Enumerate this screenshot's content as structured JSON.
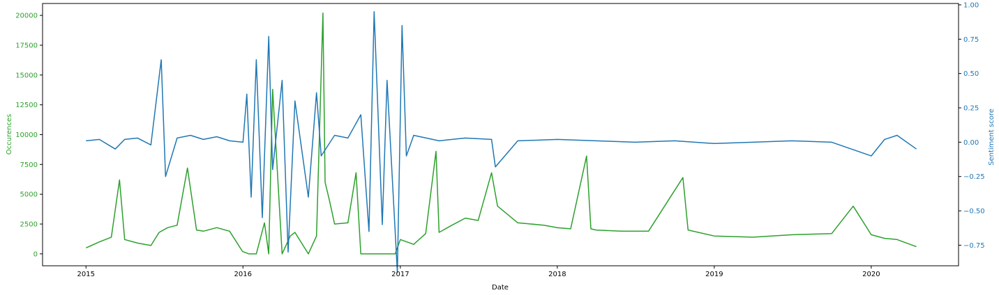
{
  "chart_data": {
    "type": "line",
    "title": "",
    "xlabel": "Date",
    "ylabel_left": "Occurences",
    "ylabel_right": "Sentiment score",
    "x_ticks": [
      "2015",
      "2016",
      "2017",
      "2018",
      "2019",
      "2020"
    ],
    "xlim": [
      "2014-09-22",
      "2020-07-22"
    ],
    "ylim_left": [
      -1000,
      21000
    ],
    "ylim_right": [
      -0.9,
      1.01
    ],
    "y_ticks_left": [
      0,
      2500,
      5000,
      7500,
      10000,
      12500,
      15000,
      17500,
      20000
    ],
    "y_ticks_right": [
      -0.75,
      -0.5,
      -0.25,
      0.0,
      0.25,
      0.5,
      0.75,
      1.0
    ],
    "y_tick_labels_right": [
      "−0.75",
      "−0.50",
      "−0.25",
      "0.00",
      "0.25",
      "0.50",
      "0.75",
      "1.00"
    ],
    "grid": false,
    "colors": {
      "occurences": "#2ca02c",
      "sentiment": "#1f77b4",
      "axis": "#000000"
    },
    "series": [
      {
        "axis": "left",
        "x": [
          "2015-01-01",
          "2015-02-01",
          "2015-03-01",
          "2015-03-20",
          "2015-04-01",
          "2015-05-01",
          "2015-06-01",
          "2015-06-20",
          "2015-07-10",
          "2015-08-01",
          "2015-08-25",
          "2015-09-15",
          "2015-10-01",
          "2015-11-01",
          "2015-12-01",
          "2015-12-31",
          "2016-01-15",
          "2016-02-01",
          "2016-02-20",
          "2016-03-01",
          "2016-03-10",
          "2016-04-01",
          "2016-04-20",
          "2016-05-01",
          "2016-06-01",
          "2016-06-20",
          "2016-07-05",
          "2016-07-10",
          "2016-07-20",
          "2016-08-01",
          "2016-09-01",
          "2016-09-20",
          "2016-10-01",
          "2016-11-01",
          "2016-12-01",
          "2016-12-20",
          "2017-01-01",
          "2017-02-01",
          "2017-03-01",
          "2017-03-25",
          "2017-04-01",
          "2017-05-01",
          "2017-06-01",
          "2017-07-01",
          "2017-08-01",
          "2017-08-15",
          "2017-09-01",
          "2017-10-01",
          "2017-11-01",
          "2017-12-01",
          "2018-01-01",
          "2018-02-01",
          "2018-03-10",
          "2018-03-20",
          "2018-04-01",
          "2018-06-01",
          "2018-08-01",
          "2018-10-20",
          "2018-11-01",
          "2019-01-01",
          "2019-04-01",
          "2019-07-01",
          "2019-10-01",
          "2019-11-20",
          "2020-01-01",
          "2020-02-01",
          "2020-03-01",
          "2020-04-15"
        ],
        "values": [
          500,
          1000,
          1400,
          6200,
          1200,
          900,
          700,
          1800,
          2200,
          2400,
          7200,
          2000,
          1900,
          2200,
          1900,
          200,
          0,
          0,
          2600,
          0,
          13800,
          0,
          1500,
          1800,
          0,
          1500,
          20200,
          6000,
          4500,
          2500,
          2600,
          6800,
          0,
          0,
          0,
          0,
          1200,
          800,
          1700,
          8600,
          1800,
          2400,
          3000,
          2800,
          6800,
          4000,
          3500,
          2600,
          2500,
          2400,
          2200,
          2100,
          8200,
          2100,
          2000,
          1900,
          1900,
          6400,
          2000,
          1500,
          1400,
          1600,
          1700,
          4000,
          1600,
          1300,
          1200,
          600
        ]
      },
      {
        "axis": "right",
        "x": [
          "2015-01-01",
          "2015-02-01",
          "2015-03-10",
          "2015-04-01",
          "2015-05-01",
          "2015-06-01",
          "2015-06-25",
          "2015-07-05",
          "2015-08-01",
          "2015-09-01",
          "2015-10-01",
          "2015-11-01",
          "2015-12-01",
          "2016-01-01",
          "2016-01-10",
          "2016-01-20",
          "2016-02-01",
          "2016-02-15",
          "2016-03-01",
          "2016-03-10",
          "2016-04-01",
          "2016-04-15",
          "2016-05-01",
          "2016-06-01",
          "2016-06-20",
          "2016-07-01",
          "2016-08-01",
          "2016-09-01",
          "2016-10-01",
          "2016-10-20",
          "2016-11-01",
          "2016-11-20",
          "2016-12-01",
          "2016-12-25",
          "2017-01-05",
          "2017-01-15",
          "2017-02-01",
          "2017-04-01",
          "2017-06-01",
          "2017-08-01",
          "2017-08-10",
          "2017-10-01",
          "2018-01-01",
          "2018-04-01",
          "2018-07-01",
          "2018-10-01",
          "2019-01-01",
          "2019-04-01",
          "2019-07-01",
          "2019-10-01",
          "2020-01-01",
          "2020-02-01",
          "2020-03-01",
          "2020-04-15"
        ],
        "values": [
          0.01,
          0.02,
          -0.05,
          0.02,
          0.03,
          -0.02,
          0.6,
          -0.25,
          0.03,
          0.05,
          0.02,
          0.04,
          0.01,
          0.0,
          0.35,
          -0.4,
          0.6,
          -0.55,
          0.77,
          -0.2,
          0.45,
          -0.8,
          0.3,
          -0.4,
          0.36,
          -0.1,
          0.05,
          0.03,
          0.2,
          -0.65,
          0.95,
          -0.6,
          0.45,
          -0.95,
          0.85,
          -0.1,
          0.05,
          0.01,
          0.03,
          0.02,
          -0.18,
          0.01,
          0.02,
          0.01,
          0.0,
          0.01,
          -0.01,
          0.0,
          0.01,
          0.0,
          -0.1,
          0.02,
          0.05,
          -0.05
        ]
      }
    ]
  }
}
